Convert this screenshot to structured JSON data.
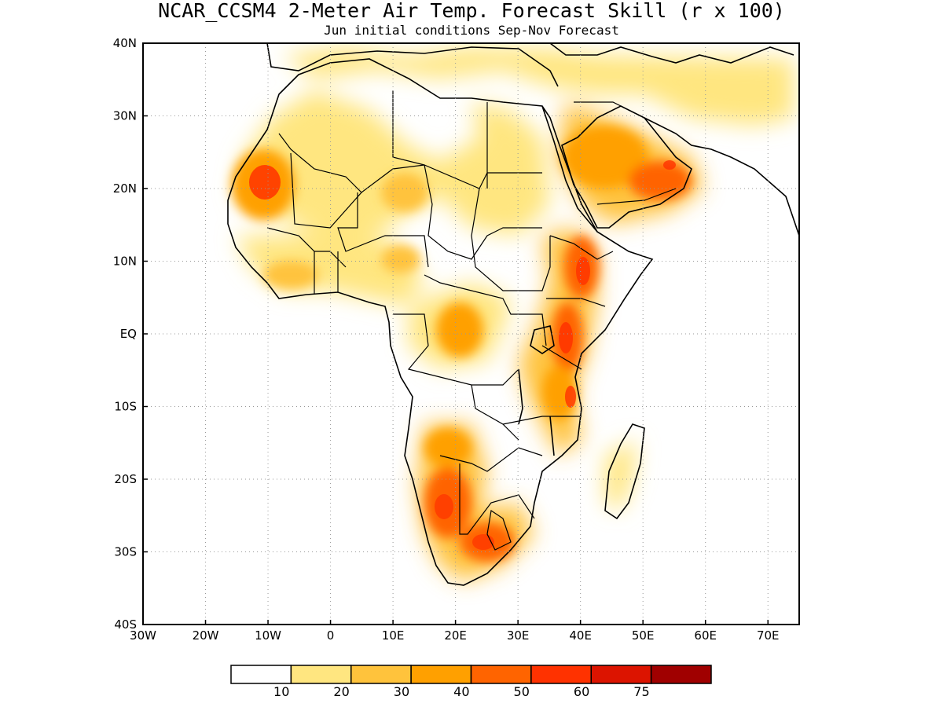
{
  "title": "NCAR_CCSM4 2-Meter Air Temp. Forecast Skill (r x 100)",
  "subtitle": "Jun initial conditions  Sep-Nov Forecast",
  "map": {
    "projection": "lat-lon",
    "lon_range": [
      -30,
      75
    ],
    "lat_range": [
      -40,
      40
    ],
    "grid": "dotted",
    "x_ticks": [
      {
        "value": -30,
        "label": "30W"
      },
      {
        "value": -20,
        "label": "20W"
      },
      {
        "value": -10,
        "label": "10W"
      },
      {
        "value": 0,
        "label": "0"
      },
      {
        "value": 10,
        "label": "10E"
      },
      {
        "value": 20,
        "label": "20E"
      },
      {
        "value": 30,
        "label": "30E"
      },
      {
        "value": 40,
        "label": "40E"
      },
      {
        "value": 50,
        "label": "50E"
      },
      {
        "value": 60,
        "label": "60E"
      },
      {
        "value": 70,
        "label": "70E"
      }
    ],
    "y_ticks": [
      {
        "value": 40,
        "label": "40N"
      },
      {
        "value": 30,
        "label": "30N"
      },
      {
        "value": 20,
        "label": "20N"
      },
      {
        "value": 10,
        "label": "10N"
      },
      {
        "value": 0,
        "label": "EQ"
      },
      {
        "value": -10,
        "label": "10S"
      },
      {
        "value": -20,
        "label": "20S"
      },
      {
        "value": -30,
        "label": "30S"
      },
      {
        "value": -40,
        "label": "40S"
      }
    ]
  },
  "colorbar": {
    "colors": [
      "#ffffff",
      "#ffe680",
      "#ffc33c",
      "#ffa000",
      "#ff6400",
      "#ff3200",
      "#dc1400",
      "#a00000"
    ],
    "labels": [
      "10",
      "20",
      "30",
      "40",
      "50",
      "60",
      "75"
    ]
  },
  "skill_regions": [
    {
      "name": "west-sahara",
      "lon": -11,
      "lat": 21,
      "level": 5
    },
    {
      "name": "central-sahara-north",
      "lon": 2,
      "lat": 27,
      "level": 1
    },
    {
      "name": "east-sahara",
      "lon": 22,
      "lat": 25,
      "level": 1
    },
    {
      "name": "chad-niger",
      "lon": 13,
      "lat": 20,
      "level": 2
    },
    {
      "name": "arabia",
      "lon": 47,
      "lat": 22,
      "level": 4
    },
    {
      "name": "persian-gulf",
      "lon": 52,
      "lat": 24,
      "level": 5
    },
    {
      "name": "ethiopia",
      "lon": 38,
      "lat": 9,
      "level": 5
    },
    {
      "name": "central-africa",
      "lon": 21,
      "lat": 1,
      "level": 4
    },
    {
      "name": "kenya",
      "lon": 38,
      "lat": 0,
      "level": 6
    },
    {
      "name": "tanzania-coast",
      "lon": 38,
      "lat": -9,
      "level": 5
    },
    {
      "name": "angola",
      "lon": 19,
      "lat": -14,
      "level": 2
    },
    {
      "name": "namibia-botswana",
      "lon": 20,
      "lat": -24,
      "level": 5
    },
    {
      "name": "south-africa",
      "lon": 25,
      "lat": -28,
      "level": 5
    },
    {
      "name": "madagascar",
      "lon": 46,
      "lat": -20,
      "level": 1
    },
    {
      "name": "west-africa-coast",
      "lon": -2,
      "lat": 9,
      "level": 2
    },
    {
      "name": "iran",
      "lon": 55,
      "lat": 33,
      "level": 1
    }
  ]
}
